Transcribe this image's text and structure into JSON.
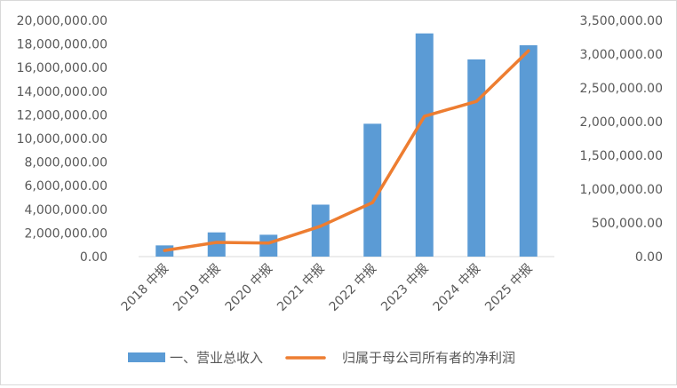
{
  "chart_data": {
    "type": "bar+line",
    "title": "",
    "categories": [
      "2018 中报",
      "2019 中报",
      "2020 中报",
      "2021 中报",
      "2022 中报",
      "2023 中报",
      "2024 中报",
      "2025 中报"
    ],
    "series": [
      {
        "name": "一、营业总收入",
        "type": "bar",
        "axis": "left",
        "color": "#5b9bd5",
        "values": [
          950000,
          2050000,
          1850000,
          4400000,
          11250000,
          18900000,
          16700000,
          17900000
        ]
      },
      {
        "name": "归属于母公司所有者的净利润",
        "type": "line",
        "axis": "right",
        "color": "#ed7d31",
        "values": [
          90000,
          210000,
          200000,
          450000,
          800000,
          2080000,
          2300000,
          3050000
        ]
      }
    ],
    "y_left": {
      "range": [
        0,
        20000000
      ],
      "ticks": [
        "0.00",
        "2,000,000.00",
        "4,000,000.00",
        "6,000,000.00",
        "8,000,000.00",
        "10,000,000.00",
        "12,000,000.00",
        "14,000,000.00",
        "16,000,000.00",
        "18,000,000.00",
        "20,000,000.00"
      ]
    },
    "y_right": {
      "range": [
        0,
        3500000
      ],
      "ticks": [
        "0.00",
        "500,000.00",
        "1,000,000.00",
        "1,500,000.00",
        "2,000,000.00",
        "2,500,000.00",
        "3,000,000.00",
        "3,500,000.00"
      ]
    },
    "grid": false,
    "legend_position": "bottom"
  }
}
